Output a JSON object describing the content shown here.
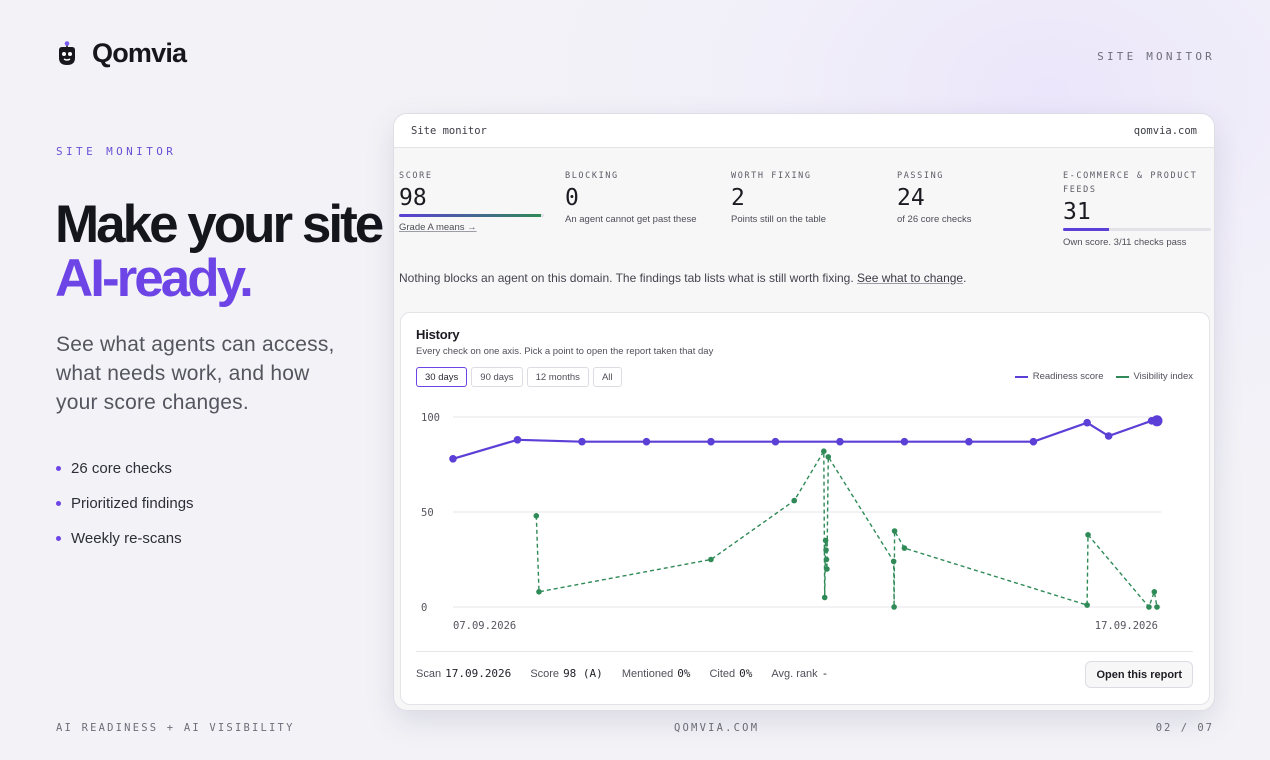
{
  "brand": {
    "name": "Qomvia",
    "logo_icon": "robot-face-icon"
  },
  "top_label": "SITE MONITOR",
  "hero": {
    "eyebrow": "SITE MONITOR",
    "headline_line1": "Make your site",
    "headline_line2": "AI-ready.",
    "lede": "See what agents can access, what needs work, and how your score changes.",
    "bullets": [
      "26 core checks",
      "Prioritized findings",
      "Weekly re-scans"
    ]
  },
  "footer": {
    "left": "AI READINESS + AI VISIBILITY",
    "center": "QOMVIA.COM",
    "right": "02 / 07"
  },
  "monitor": {
    "title": "Site monitor",
    "domain": "qomvia.com",
    "metrics": [
      {
        "label": "SCORE",
        "value": "98",
        "sub": "Grade A means →",
        "progress": 0.98,
        "bar_gradient": true
      },
      {
        "label": "BLOCKING",
        "value": "0",
        "sub": "An agent cannot get past these"
      },
      {
        "label": "WORTH FIXING",
        "value": "2",
        "sub": "Points still on the table"
      },
      {
        "label": "PASSING",
        "value": "24",
        "sub": "of 26 core checks"
      },
      {
        "label": "E-COMMERCE & PRODUCT FEEDS",
        "value": "31",
        "sub": "Own score. 3/11 checks pass",
        "progress": 0.31
      }
    ],
    "notice_text": "Nothing blocks an agent on this domain. The findings tab lists what is still worth fixing.",
    "notice_link": "See what to change",
    "notice_end": ".",
    "history": {
      "title": "History",
      "subtitle": "Every check on one axis. Pick a point to open the report taken that day",
      "ranges": [
        "30 days",
        "90 days",
        "12 months",
        "All"
      ],
      "active_range": "30 days",
      "scan": {
        "label": "Scan",
        "date": "17.09.2026",
        "score_label": "Score",
        "score": "98 (A)",
        "mentioned_label": "Mentioned",
        "mentioned": "0%",
        "cited_label": "Cited",
        "cited": "0%",
        "rank_label": "Avg. rank",
        "rank": "-"
      },
      "open_button": "Open this report"
    },
    "colors": {
      "accent": "#6d45e6",
      "readiness": "#5b3fd6",
      "visibility": "#2f8a57"
    }
  },
  "chart_data": {
    "type": "line",
    "title": "History",
    "xlabel": "",
    "ylabel": "",
    "ylim": [
      0,
      100
    ],
    "yticks": [
      0,
      50,
      100
    ],
    "xticks": [
      "07.09.2026",
      "17.09.2026"
    ],
    "x_range": [
      "07.09.2026",
      "17.09.2026"
    ],
    "grid": true,
    "legend": "top-right",
    "series": [
      {
        "name": "Readiness score",
        "color": "#5b3fd6",
        "style": "solid",
        "points": [
          [
            "07.09.2026",
            78
          ],
          [
            "08.09.2026",
            88
          ],
          [
            "09.09.2026",
            87
          ],
          [
            "10.09.2026",
            87
          ],
          [
            "11.09.2026",
            87
          ],
          [
            "12.09.2026",
            87
          ],
          [
            "13.09.2026",
            87
          ],
          [
            "14.09.2026",
            87
          ],
          [
            "15.09.2026",
            87
          ],
          [
            "16.09.2026",
            87
          ],
          [
            "16.09.2026 20:00",
            97
          ],
          [
            "17.09.2026 04:00",
            90
          ],
          [
            "17.09.2026 20:00",
            98
          ],
          [
            "17.09.2026 22:00",
            98
          ]
        ]
      },
      {
        "name": "Visibility index",
        "color": "#2f8a57",
        "style": "dashed",
        "points": [
          [
            "08.09.2026 07:00",
            48
          ],
          [
            "08.09.2026 08:00",
            8
          ],
          [
            "11.09.2026",
            25
          ],
          [
            "12.09.2026 07:00",
            56
          ],
          [
            "12.09.2026 18:00",
            82
          ],
          [
            "12.09.2026 18:20",
            5
          ],
          [
            "12.09.2026 18:40",
            35
          ],
          [
            "12.09.2026 18:50",
            30
          ],
          [
            "12.09.2026 19:00",
            25
          ],
          [
            "12.09.2026 19:10",
            20
          ],
          [
            "12.09.2026 19:40",
            79
          ],
          [
            "13.09.2026 20:00",
            24
          ],
          [
            "13.09.2026 20:10",
            0
          ],
          [
            "13.09.2026 20:20",
            40
          ],
          [
            "14.09.2026",
            31
          ],
          [
            "16.09.2026 20:00",
            1
          ],
          [
            "16.09.2026 20:20",
            38
          ],
          [
            "17.09.2026 19:00",
            0
          ],
          [
            "17.09.2026 21:00",
            8
          ],
          [
            "17.09.2026 22:00",
            0
          ]
        ]
      }
    ]
  }
}
